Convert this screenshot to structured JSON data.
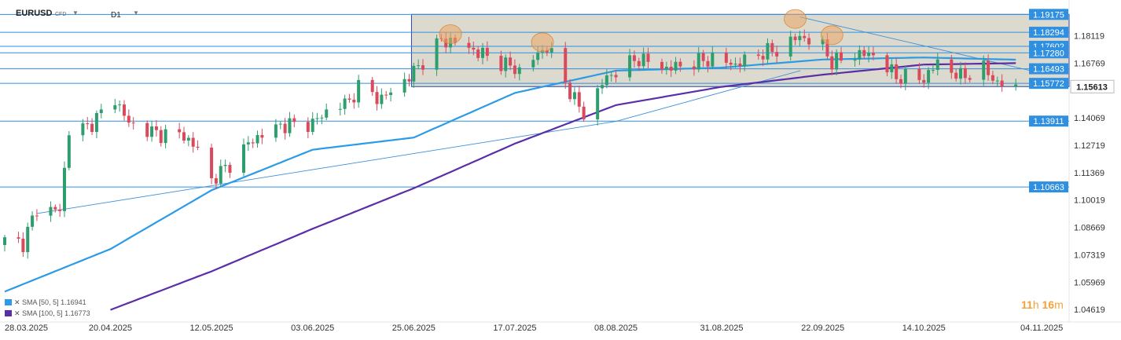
{
  "header": {
    "symbol": "EURUSD",
    "instrument_type": "CFD",
    "timeframe": "D1"
  },
  "countdown": {
    "hours_value": "11",
    "hours_unit": "h",
    "minutes_value": "16",
    "minutes_unit": "m"
  },
  "colors": {
    "bull": "#2e9e6e",
    "bear": "#d94a5b",
    "level_line": "#2f8fe0",
    "price_tag": "#2f8fe0",
    "current_price_tag": "#ffffff",
    "sma50": "#2c9be6",
    "sma100": "#5a2ea6",
    "range_box": "#d6d4c6",
    "highlight": "#eba566"
  },
  "chart_data": {
    "type": "candlestick",
    "instrument": "EURUSD",
    "timeframe": "D1",
    "ylim": [
      1.0412,
      1.1973
    ],
    "x_tick_labels": [
      "28.03.2025",
      "20.04.2025",
      "12.05.2025",
      "03.06.2025",
      "25.06.2025",
      "17.07.2025",
      "08.08.2025",
      "31.08.2025",
      "22.09.2025",
      "14.10.2025",
      "04.11.2025"
    ],
    "y_tick_labels": [
      "1.18119",
      "1.16769",
      "1.15613",
      "1.14069",
      "1.12719",
      "1.11369",
      "1.10019",
      "1.08669",
      "1.07319",
      "1.05969",
      "1.04619"
    ],
    "current_price": "1.15613",
    "horizontal_levels": [
      "1.19175",
      "1.18294",
      "1.17602",
      "1.17280",
      "1.16493",
      "1.15772",
      "1.13911",
      "1.10663"
    ],
    "range_box": {
      "top": 1.19175,
      "bottom": 1.15613,
      "start_date": "24.06.2025"
    },
    "indicators": [
      {
        "label": "SMA [50, 5]",
        "value": "1.16941"
      },
      {
        "label": "SMA [100, 5]",
        "value": "1.16773"
      }
    ],
    "approx_daily_closes_anchors": [
      [
        "28.03.2025",
        1.08
      ],
      [
        "01.04.2025",
        1.079
      ],
      [
        "04.04.2025",
        1.096
      ],
      [
        "09.04.2025",
        1.095
      ],
      [
        "11.04.2025",
        1.135
      ],
      [
        "15.04.2025",
        1.136
      ],
      [
        "21.04.2025",
        1.15
      ],
      [
        "24.04.2025",
        1.138
      ],
      [
        "30.04.2025",
        1.133
      ],
      [
        "06.05.2025",
        1.132
      ],
      [
        "09.05.2025",
        1.125
      ],
      [
        "12.05.2025",
        1.11
      ],
      [
        "16.05.2025",
        1.118
      ],
      [
        "21.05.2025",
        1.13
      ],
      [
        "27.05.2025",
        1.137
      ],
      [
        "03.06.2025",
        1.138
      ],
      [
        "06.06.2025",
        1.144
      ],
      [
        "11.06.2025",
        1.149
      ],
      [
        "13.06.2025",
        1.156
      ],
      [
        "18.06.2025",
        1.15
      ],
      [
        "24.06.2025",
        1.161
      ],
      [
        "01.07.2025",
        1.179
      ],
      [
        "04.07.2025",
        1.178
      ],
      [
        "08.07.2025",
        1.174
      ],
      [
        "14.07.2025",
        1.168
      ],
      [
        "18.07.2025",
        1.164
      ],
      [
        "24.07.2025",
        1.176
      ],
      [
        "28.07.2025",
        1.158
      ],
      [
        "01.08.2025",
        1.142
      ],
      [
        "05.08.2025",
        1.158
      ],
      [
        "08.08.2025",
        1.164
      ],
      [
        "13.08.2025",
        1.17
      ],
      [
        "19.08.2025",
        1.165
      ],
      [
        "25.08.2025",
        1.168
      ],
      [
        "29.08.2025",
        1.17
      ],
      [
        "03.09.2025",
        1.167
      ],
      [
        "09.09.2025",
        1.173
      ],
      [
        "12.09.2025",
        1.174
      ],
      [
        "17.09.2025",
        1.181
      ],
      [
        "22.09.2025",
        1.176
      ],
      [
        "24.09.2025",
        1.168
      ],
      [
        "29.09.2025",
        1.172
      ],
      [
        "03.10.2025",
        1.172
      ],
      [
        "08.10.2025",
        1.161
      ],
      [
        "14.10.2025",
        1.16
      ],
      [
        "17.10.2025",
        1.168
      ],
      [
        "22.10.2025",
        1.161
      ],
      [
        "27.10.2025",
        1.165
      ],
      [
        "30.10.2025",
        1.158
      ],
      [
        "03.11.2025",
        1.155
      ]
    ],
    "approx_sma50_anchors": [
      [
        "28.03.2025",
        1.055
      ],
      [
        "20.04.2025",
        1.076
      ],
      [
        "12.05.2025",
        1.105
      ],
      [
        "03.06.2025",
        1.125
      ],
      [
        "25.06.2025",
        1.131
      ],
      [
        "17.07.2025",
        1.153
      ],
      [
        "08.08.2025",
        1.164
      ],
      [
        "31.08.2025",
        1.1655
      ],
      [
        "22.09.2025",
        1.1695
      ],
      [
        "14.10.2025",
        1.1705
      ],
      [
        "03.11.2025",
        1.1694
      ]
    ],
    "approx_sma100_anchors": [
      [
        "20.04.2025",
        1.046
      ],
      [
        "12.05.2025",
        1.065
      ],
      [
        "03.06.2025",
        1.086
      ],
      [
        "25.06.2025",
        1.106
      ],
      [
        "17.07.2025",
        1.128
      ],
      [
        "08.08.2025",
        1.147
      ],
      [
        "31.08.2025",
        1.156
      ],
      [
        "22.09.2025",
        1.162
      ],
      [
        "14.10.2025",
        1.167
      ],
      [
        "03.11.2025",
        1.1677
      ]
    ]
  }
}
